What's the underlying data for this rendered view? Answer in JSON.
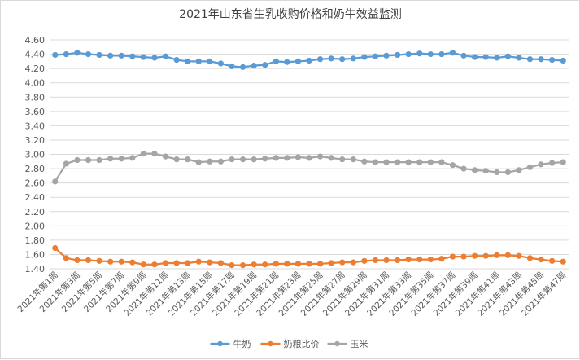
{
  "chart_data": {
    "type": "line",
    "title": "2021年山东省生乳收购价格和奶牛效益监测",
    "xlabel": "",
    "ylabel": "",
    "ylim": [
      1.4,
      4.6
    ],
    "ytick_step": 0.2,
    "grid": true,
    "legend_position": "bottom",
    "categories": [
      "2021年第1周",
      "2021年第2周",
      "2021年第3周",
      "2021年第4周",
      "2021年第5周",
      "2021年第6周",
      "2021年第7周",
      "2021年第8周",
      "2021年第9周",
      "2021年第10周",
      "2021年第11周",
      "2021年第12周",
      "2021年第13周",
      "2021年第14周",
      "2021年第15周",
      "2021年第16周",
      "2021年第17周",
      "2021年第18周",
      "2021年第19周",
      "2021年第20周",
      "2021年第21周",
      "2021年第22周",
      "2021年第23周",
      "2021年第24周",
      "2021年第25周",
      "2021年第26周",
      "2021年第27周",
      "2021年第28周",
      "2021年第29周",
      "2021年第30周",
      "2021年第31周",
      "2021年第32周",
      "2021年第33周",
      "2021年第34周",
      "2021年第35周",
      "2021年第36周",
      "2021年第37周",
      "2021年第38周",
      "2021年第39周",
      "2021年第40周",
      "2021年第41周",
      "2021年第42周",
      "2021年第43周",
      "2021年第44周",
      "2021年第45周",
      "2021年第46周",
      "2021年第47周"
    ],
    "x_tick_labels": [
      "2021年第1周",
      "2021年第3周",
      "2021年第5周",
      "2021年第7周",
      "2021年第9周",
      "2021年第11周",
      "2021年第13周",
      "2021年第15周",
      "2021年第17周",
      "2021年第19周",
      "2021年第21周",
      "2021年第23周",
      "2021年第25周",
      "2021年第27周",
      "2021年第29周",
      "2021年第31周",
      "2021年第33周",
      "2021年第35周",
      "2021年第37周",
      "2021年第39周",
      "2021年第41周",
      "2021年第43周",
      "2021年第45周",
      "2021年第47周"
    ],
    "series": [
      {
        "name": "牛奶",
        "color": "#5b9bd5",
        "values": [
          4.39,
          4.4,
          4.42,
          4.4,
          4.39,
          4.38,
          4.38,
          4.37,
          4.36,
          4.35,
          4.37,
          4.32,
          4.3,
          4.3,
          4.3,
          4.27,
          4.23,
          4.22,
          4.24,
          4.25,
          4.3,
          4.29,
          4.3,
          4.31,
          4.33,
          4.34,
          4.33,
          4.34,
          4.36,
          4.37,
          4.38,
          4.39,
          4.4,
          4.41,
          4.4,
          4.4,
          4.42,
          4.38,
          4.36,
          4.36,
          4.35,
          4.37,
          4.35,
          4.33,
          4.33,
          4.32,
          4.31
        ]
      },
      {
        "name": "奶粮比价",
        "color": "#ed7d31",
        "values": [
          1.69,
          1.55,
          1.52,
          1.52,
          1.51,
          1.5,
          1.5,
          1.49,
          1.46,
          1.46,
          1.48,
          1.48,
          1.48,
          1.5,
          1.49,
          1.48,
          1.45,
          1.45,
          1.46,
          1.46,
          1.47,
          1.47,
          1.47,
          1.47,
          1.47,
          1.48,
          1.49,
          1.49,
          1.51,
          1.52,
          1.52,
          1.52,
          1.53,
          1.53,
          1.53,
          1.54,
          1.57,
          1.57,
          1.58,
          1.58,
          1.59,
          1.59,
          1.58,
          1.55,
          1.53,
          1.51,
          1.5
        ]
      },
      {
        "name": "玉米",
        "color": "#a5a5a5",
        "values": [
          2.62,
          2.87,
          2.92,
          2.92,
          2.92,
          2.94,
          2.94,
          2.95,
          3.01,
          3.01,
          2.97,
          2.93,
          2.93,
          2.89,
          2.9,
          2.9,
          2.93,
          2.93,
          2.93,
          2.94,
          2.95,
          2.95,
          2.96,
          2.95,
          2.97,
          2.95,
          2.93,
          2.93,
          2.9,
          2.89,
          2.89,
          2.89,
          2.89,
          2.89,
          2.89,
          2.89,
          2.85,
          2.8,
          2.78,
          2.77,
          2.75,
          2.75,
          2.78,
          2.82,
          2.86,
          2.88,
          2.89
        ]
      }
    ]
  }
}
